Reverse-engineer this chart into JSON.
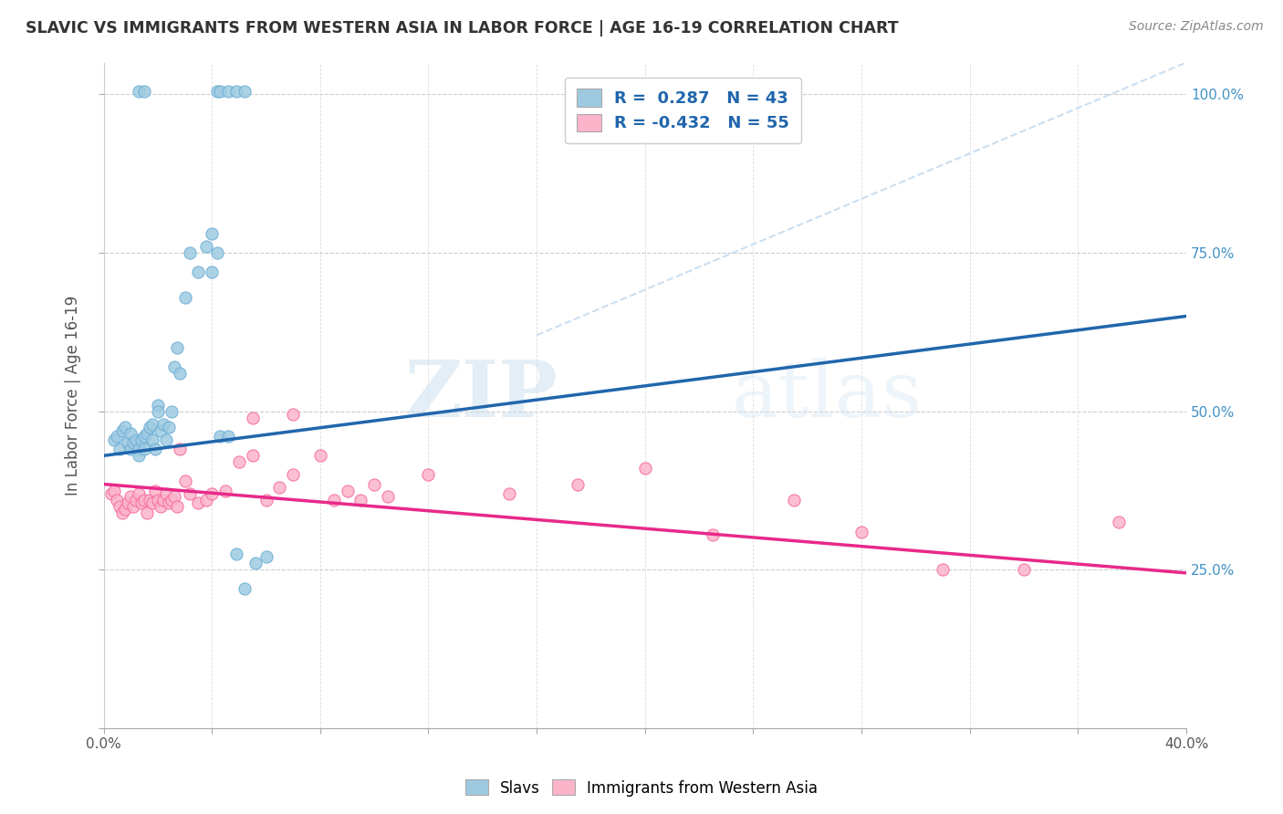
{
  "title": "SLAVIC VS IMMIGRANTS FROM WESTERN ASIA IN LABOR FORCE | AGE 16-19 CORRELATION CHART",
  "source": "Source: ZipAtlas.com",
  "ylabel": "In Labor Force | Age 16-19",
  "xlim": [
    0.0,
    0.4
  ],
  "ylim": [
    0.0,
    1.05
  ],
  "ytick_vals": [
    0.0,
    0.25,
    0.5,
    0.75,
    1.0
  ],
  "xtick_vals": [
    0.0,
    0.04,
    0.08,
    0.12,
    0.16,
    0.2,
    0.24,
    0.28,
    0.32,
    0.36,
    0.4
  ],
  "watermark_zip": "ZIP",
  "watermark_atlas": "atlas",
  "blue_color": "#9ecae1",
  "blue_edge": "#6baed6",
  "pink_color": "#fbb4c9",
  "pink_edge": "#f768a1",
  "blue_line_color": "#2166ac",
  "pink_line_color": "#e7298a",
  "dashed_line_color": "#c6dbef",
  "right_tick_color": "#4292c6",
  "slavs_x": [
    0.004,
    0.005,
    0.006,
    0.007,
    0.008,
    0.009,
    0.01,
    0.01,
    0.011,
    0.012,
    0.013,
    0.013,
    0.014,
    0.015,
    0.015,
    0.016,
    0.017,
    0.018,
    0.018,
    0.019,
    0.02,
    0.02,
    0.021,
    0.022,
    0.023,
    0.024,
    0.025,
    0.026,
    0.027,
    0.028,
    0.03,
    0.032,
    0.035,
    0.038,
    0.04,
    0.04,
    0.042,
    0.043,
    0.046,
    0.049,
    0.052,
    0.056,
    0.06
  ],
  "slavs_y": [
    0.455,
    0.46,
    0.44,
    0.47,
    0.475,
    0.45,
    0.465,
    0.44,
    0.45,
    0.455,
    0.44,
    0.43,
    0.455,
    0.46,
    0.44,
    0.465,
    0.475,
    0.48,
    0.455,
    0.44,
    0.51,
    0.5,
    0.47,
    0.48,
    0.455,
    0.475,
    0.5,
    0.57,
    0.6,
    0.56,
    0.68,
    0.75,
    0.72,
    0.76,
    0.78,
    0.72,
    0.75,
    0.46,
    0.46,
    0.275,
    0.22,
    0.26,
    0.27
  ],
  "slavs_y_top": [
    1.005,
    1.005,
    1.005,
    1.005,
    1.005,
    1.005,
    1.005
  ],
  "slavs_x_top": [
    0.013,
    0.015,
    0.042,
    0.043,
    0.046,
    0.049,
    0.052
  ],
  "wa_x": [
    0.003,
    0.004,
    0.005,
    0.006,
    0.007,
    0.008,
    0.009,
    0.01,
    0.011,
    0.012,
    0.013,
    0.014,
    0.015,
    0.016,
    0.017,
    0.018,
    0.019,
    0.02,
    0.021,
    0.022,
    0.023,
    0.024,
    0.025,
    0.026,
    0.027,
    0.028,
    0.03,
    0.032,
    0.035,
    0.038,
    0.04,
    0.045,
    0.05,
    0.055,
    0.06,
    0.065,
    0.07,
    0.08,
    0.09,
    0.1,
    0.12,
    0.15,
    0.175,
    0.2,
    0.225,
    0.255,
    0.28,
    0.31,
    0.34,
    0.375,
    0.055,
    0.07,
    0.085,
    0.095,
    0.105
  ],
  "wa_y": [
    0.37,
    0.375,
    0.36,
    0.35,
    0.34,
    0.345,
    0.355,
    0.365,
    0.35,
    0.36,
    0.37,
    0.355,
    0.36,
    0.34,
    0.36,
    0.355,
    0.375,
    0.36,
    0.35,
    0.36,
    0.37,
    0.355,
    0.36,
    0.365,
    0.35,
    0.44,
    0.39,
    0.37,
    0.355,
    0.36,
    0.37,
    0.375,
    0.42,
    0.43,
    0.36,
    0.38,
    0.4,
    0.43,
    0.375,
    0.385,
    0.4,
    0.37,
    0.385,
    0.41,
    0.305,
    0.36,
    0.31,
    0.25,
    0.25,
    0.325,
    0.49,
    0.495,
    0.36,
    0.36,
    0.365
  ],
  "blue_line_x": [
    0.0,
    0.4
  ],
  "blue_line_y": [
    0.43,
    0.65
  ],
  "pink_line_x": [
    0.0,
    0.4
  ],
  "pink_line_y": [
    0.385,
    0.245
  ],
  "dash_line_x": [
    0.16,
    0.4
  ],
  "dash_line_y": [
    0.62,
    1.05
  ]
}
